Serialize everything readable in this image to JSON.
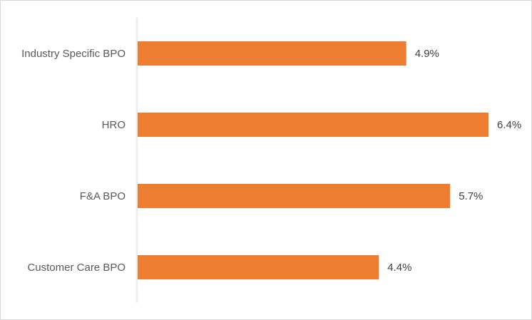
{
  "chart_data": {
    "type": "bar",
    "orientation": "horizontal",
    "categories": [
      "Industry Specific BPO",
      "HRO",
      "F&A BPO",
      "Customer Care BPO"
    ],
    "values": [
      4.9,
      6.4,
      5.7,
      4.4
    ],
    "data_labels": [
      "4.9%",
      "6.4%",
      "5.7%",
      "4.4%"
    ],
    "value_unit": "%",
    "title": "",
    "xlabel": "",
    "ylabel": "",
    "xlim": [
      0,
      7
    ],
    "grid": false,
    "legend": "none",
    "bar_color": "#ED7D31",
    "axis_color": "#d9d9d9"
  }
}
